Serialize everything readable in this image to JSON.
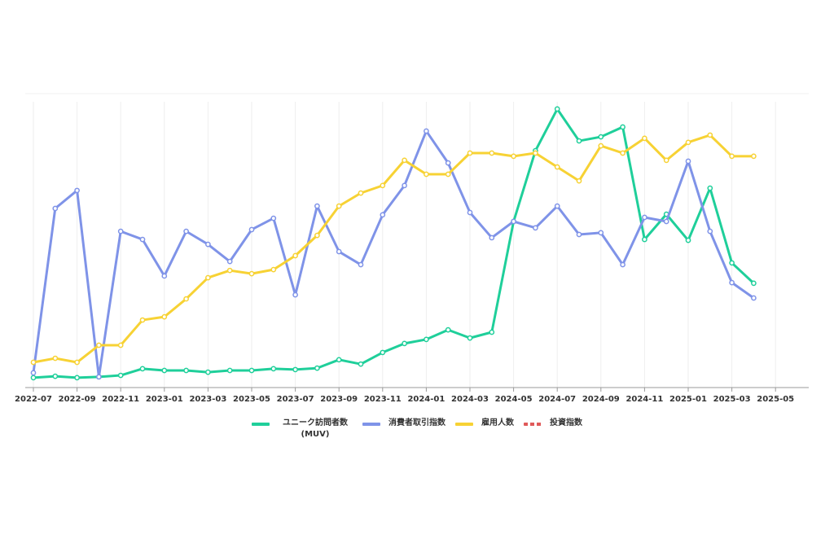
{
  "chart_data": {
    "type": "line",
    "x": [
      "2022-07",
      "2022-08",
      "2022-09",
      "2022-10",
      "2022-11",
      "2022-12",
      "2023-01",
      "2023-02",
      "2023-03",
      "2023-04",
      "2023-05",
      "2023-06",
      "2023-07",
      "2023-08",
      "2023-09",
      "2023-10",
      "2023-11",
      "2023-12",
      "2024-01",
      "2024-02",
      "2024-03",
      "2024-04",
      "2024-05",
      "2024-06",
      "2024-07",
      "2024-08",
      "2024-09",
      "2024-10",
      "2024-11",
      "2024-12",
      "2025-01",
      "2025-02",
      "2025-03",
      "2025-04"
    ],
    "xlim": [
      "2022-07",
      "2025-06"
    ],
    "xticks": [
      "2022-07",
      "2022-09",
      "2022-11",
      "2023-01",
      "2023-03",
      "2023-05",
      "2023-07",
      "2023-09",
      "2023-11",
      "2024-01",
      "2024-03",
      "2024-05",
      "2024-07",
      "2024-09",
      "2024-11",
      "2025-01",
      "2025-03",
      "2025-05"
    ],
    "ylim": [
      0,
      100
    ],
    "grid": true,
    "series": [
      {
        "name": "ユニーク訪問者数 (MUV)",
        "color": "#1fcf9a",
        "values": [
          3.4,
          3.9,
          3.4,
          3.7,
          4.2,
          6.5,
          5.9,
          5.9,
          5.3,
          5.9,
          5.9,
          6.5,
          6.2,
          6.7,
          9.6,
          8.1,
          12.1,
          15.2,
          16.6,
          19.9,
          17.1,
          19.1,
          57.3,
          81.7,
          96.1,
          85.1,
          86.5,
          89.9,
          51.1,
          59.8,
          50.8,
          68.8,
          43.0,
          36.0
        ]
      },
      {
        "name": "消費者取引指数",
        "color": "#7f93e8",
        "values": [
          5.1,
          61.8,
          68.0,
          3.7,
          53.9,
          51.1,
          38.5,
          53.9,
          49.4,
          43.5,
          54.5,
          58.4,
          32.0,
          62.6,
          46.9,
          42.4,
          59.6,
          69.7,
          88.5,
          77.5,
          60.4,
          51.7,
          57.3,
          55.1,
          62.6,
          52.8,
          53.4,
          42.4,
          58.7,
          57.3,
          78.1,
          53.9,
          36.2,
          30.9
        ]
      },
      {
        "name": "雇用人数",
        "color": "#f7d234",
        "values": [
          8.7,
          10.1,
          8.7,
          14.6,
          14.6,
          23.3,
          24.4,
          30.6,
          37.9,
          40.4,
          39.3,
          40.7,
          45.5,
          52.5,
          62.6,
          67.1,
          69.7,
          78.4,
          73.6,
          73.6,
          80.9,
          80.9,
          79.8,
          80.9,
          76.1,
          71.3,
          83.4,
          80.9,
          86.0,
          78.4,
          84.6,
          87.1,
          79.8,
          79.8
        ]
      },
      {
        "name": "投資指数",
        "color": "#e05a5a",
        "dashed": true,
        "values": [
          null,
          null,
          null,
          null,
          null,
          null,
          null,
          null,
          null,
          null,
          null,
          null,
          null,
          null,
          null,
          null,
          null,
          null,
          null,
          null,
          null,
          null,
          null,
          null,
          null,
          null,
          null,
          null,
          null,
          null,
          null,
          null,
          null,
          null
        ]
      }
    ]
  }
}
